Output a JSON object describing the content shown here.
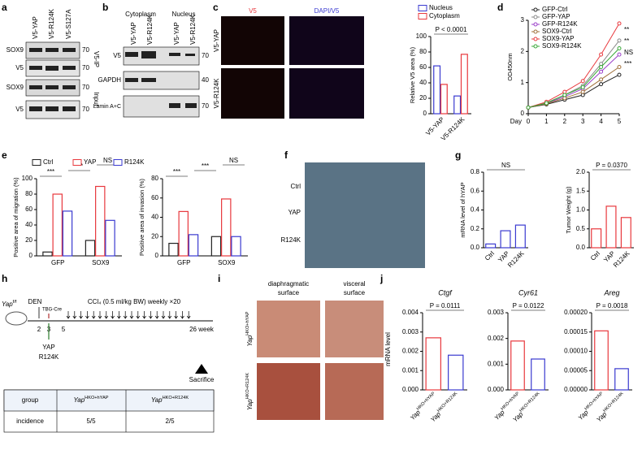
{
  "panels": {
    "labels": [
      "a",
      "b",
      "c",
      "d",
      "e",
      "f",
      "g",
      "h",
      "i",
      "j"
    ],
    "a": {
      "lanes": [
        "V5-YAP",
        "V5-R124K",
        "V5-S127A"
      ],
      "rows": [
        "SOX9",
        "V5",
        "SOX9",
        "V5"
      ],
      "groups": [
        "V5-IP",
        "Input"
      ],
      "mw": [
        "70",
        "70",
        "70",
        "70"
      ]
    },
    "b": {
      "groups": [
        "Cytoplasm",
        "Nucleus"
      ],
      "lanes": [
        "V5-YAP",
        "V5-R124K",
        "V5-YAP",
        "V5-R124K"
      ],
      "rows": [
        "V5",
        "GAPDH",
        "Lamin A+C"
      ],
      "mw": [
        "70",
        "40",
        "70"
      ]
    },
    "c": {
      "columns": [
        "V5",
        "DAPI/V5"
      ],
      "rows": [
        "V5-YAP",
        "V5-R124K"
      ]
    },
    "f": {
      "rows": [
        "Ctrl",
        "YAP",
        "R124K"
      ]
    },
    "h": {
      "mouse": "Yapf/f",
      "den": "DEN",
      "tbg": "TBG-Cre",
      "ccl4": "CCl₄ (0.5 ml/kg BW) weekly ×20",
      "weeks": [
        "2",
        "3",
        "5",
        "26 week"
      ],
      "vector": [
        "YAP",
        "R124K"
      ],
      "end": "Sacrifice",
      "table": {
        "header": [
          "group",
          "YapHKO+hYAP",
          "YapHKO+R124K"
        ],
        "rows": [
          [
            "incidence",
            "5/5",
            "2/5"
          ]
        ]
      }
    },
    "i": {
      "columns": [
        [
          "diaphragmatic",
          "surface"
        ],
        [
          "visceral",
          "surface"
        ]
      ],
      "rows": [
        "YapHKO+hYAP",
        "YapHKO+R124K"
      ]
    },
    "j": {
      "ylabel": "mRNA level"
    }
  },
  "chart_data": [
    {
      "type": "bar",
      "ylabel": "Relative V5 area (%)",
      "categories": [
        "V5-YAP",
        "V5-R124K"
      ],
      "series": [
        {
          "name": "Nucleus",
          "color": "#3a3ad0",
          "values": [
            62,
            23
          ]
        },
        {
          "name": "Cytoplasm",
          "color": "#e8383d",
          "values": [
            38,
            77
          ]
        }
      ],
      "ylim": [
        0,
        100
      ],
      "yticks": [
        0,
        20,
        40,
        60,
        80,
        100
      ],
      "annotations": [
        "P < 0.0001"
      ]
    },
    {
      "type": "line",
      "ylabel": "OD450nm",
      "xlabel": "Day",
      "x": [
        0,
        1,
        2,
        3,
        4,
        5
      ],
      "xlim": [
        0,
        5
      ],
      "xticks": [
        0,
        1,
        2,
        3,
        4,
        5
      ],
      "ylim": [
        0,
        3
      ],
      "yticks": [
        0,
        1,
        2,
        3
      ],
      "series": [
        {
          "name": "GFP-Ctrl",
          "color": "#222222",
          "values": [
            0.2,
            0.3,
            0.45,
            0.6,
            0.95,
            1.25
          ]
        },
        {
          "name": "GFP-YAP",
          "color": "#8a8a8a",
          "values": [
            0.2,
            0.35,
            0.6,
            0.9,
            1.6,
            2.35
          ]
        },
        {
          "name": "GFP-R124K",
          "color": "#9b3fc9",
          "values": [
            0.2,
            0.33,
            0.55,
            0.8,
            1.35,
            1.9
          ]
        },
        {
          "name": "SOX9-Ctrl",
          "color": "#a0703a",
          "values": [
            0.2,
            0.32,
            0.5,
            0.7,
            1.1,
            1.5
          ]
        },
        {
          "name": "SOX9-YAP",
          "color": "#e8383d",
          "values": [
            0.2,
            0.38,
            0.7,
            1.05,
            1.9,
            2.9
          ]
        },
        {
          "name": "SOX9-R124K",
          "color": "#3aa83a",
          "values": [
            0.2,
            0.34,
            0.6,
            0.85,
            1.5,
            2.1
          ]
        }
      ],
      "annotations": [
        "**",
        "**",
        "NS",
        "***"
      ]
    },
    {
      "type": "bar",
      "ylabel": "Positive area of migration (%)",
      "categories": [
        "GFP",
        "SOX9"
      ],
      "series": [
        {
          "name": "Ctrl",
          "color": "#222222",
          "values": [
            5,
            20
          ]
        },
        {
          "name": "YAP",
          "color": "#e8383d",
          "values": [
            80,
            90
          ]
        },
        {
          "name": "R124K",
          "color": "#3a3ad0",
          "values": [
            58,
            46
          ]
        }
      ],
      "ylim": [
        0,
        100
      ],
      "yticks": [
        0,
        20,
        40,
        60,
        80,
        100
      ],
      "annotations": [
        "***",
        "***",
        "NS"
      ]
    },
    {
      "type": "bar",
      "ylabel": "Positive area of invasion (%)",
      "categories": [
        "GFP",
        "SOX9"
      ],
      "series": [
        {
          "color": "#222222",
          "values": [
            13,
            20
          ]
        },
        {
          "color": "#e8383d",
          "values": [
            46,
            59
          ]
        },
        {
          "color": "#3a3ad0",
          "values": [
            22,
            20
          ]
        }
      ],
      "ylim": [
        0,
        80
      ],
      "yticks": [
        0,
        20,
        40,
        60,
        80
      ],
      "annotations": [
        "***",
        "***",
        "NS"
      ]
    },
    {
      "type": "bar",
      "ylabel": "mRNA level of hYAP",
      "categories": [
        "Ctrl",
        "YAP",
        "R124K"
      ],
      "color": "#3a3ad0",
      "values": [
        0.04,
        0.18,
        0.24
      ],
      "ylim": [
        0,
        0.8
      ],
      "yticks": [
        {
          "value": 0,
          "label": "0.0"
        },
        0.2,
        0.4,
        0.6,
        0.8
      ],
      "annotations": [
        "NS"
      ]
    },
    {
      "type": "bar",
      "ylabel": "Tumor Weight (g)",
      "categories": [
        "Ctrl",
        "YAP",
        "R124K"
      ],
      "color": "#e8383d",
      "values": [
        0.5,
        1.1,
        0.8
      ],
      "ylim": [
        0,
        2
      ],
      "yticks": [
        {
          "value": 0,
          "label": "0.0"
        },
        0.5,
        {
          "value": 1,
          "label": "1.0"
        },
        1.5,
        {
          "value": 2,
          "label": "2.0"
        }
      ],
      "annotations": [
        "P = 0.0370"
      ]
    },
    {
      "type": "bar",
      "title": "Ctgf",
      "categories": [
        "YapHKO+hYAP",
        "YapHKO+R124K"
      ],
      "series": [
        {
          "color": "#e8383d",
          "values": [
            0.0027,
            null
          ]
        },
        {
          "color": "#3a3ad0",
          "values": [
            null,
            0.0018
          ]
        }
      ],
      "ylim": [
        0,
        0.004
      ],
      "yticks": [
        {
          "value": 0,
          "label": "0.000"
        },
        0.001,
        0.002,
        0.003,
        0.004
      ],
      "annotations": [
        "P = 0.0111"
      ]
    },
    {
      "type": "bar",
      "title": "Cyr61",
      "categories": [
        "YapHKO+hYAP",
        "YapHKO+R124K"
      ],
      "series": [
        {
          "color": "#e8383d",
          "values": [
            0.0019,
            null
          ]
        },
        {
          "color": "#3a3ad0",
          "values": [
            null,
            0.0012
          ]
        }
      ],
      "ylim": [
        0,
        0.003
      ],
      "yticks": [
        {
          "value": 0,
          "label": "0.000"
        },
        0.001,
        0.002,
        0.003
      ],
      "annotations": [
        "P = 0.0122"
      ]
    },
    {
      "type": "bar",
      "title": "Areg",
      "categories": [
        "YapHKO+hYAP",
        "YapHKO+R124K"
      ],
      "series": [
        {
          "color": "#e8383d",
          "values": [
            0.000153,
            null
          ]
        },
        {
          "color": "#3a3ad0",
          "values": [
            null,
            5.5e-05
          ]
        }
      ],
      "ylim": [
        0,
        0.0002
      ],
      "yticks": [
        {
          "value": 0,
          "label": "0.00000"
        },
        {
          "value": 5e-05,
          "label": "0.00005"
        },
        {
          "value": 0.0001,
          "label": "0.00010"
        },
        {
          "value": 0.00015,
          "label": "0.00015"
        },
        {
          "value": 0.0002,
          "label": "0.00020"
        }
      ],
      "annotations": [
        "P = 0.0018"
      ]
    }
  ]
}
